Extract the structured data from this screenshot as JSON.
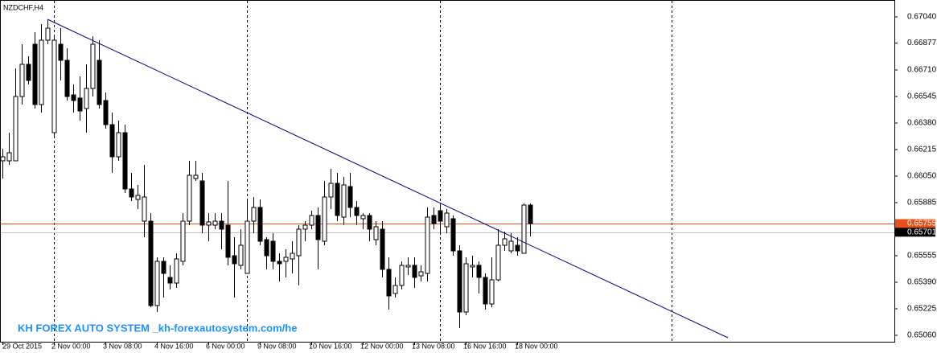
{
  "chart_data": {
    "type": "candlestick",
    "title": "NZDCHF,H4",
    "watermark": "KH FOREX AUTO SYSTEM _kh-forexautosystem.com/he",
    "categories": [
      "29 Oct 2015",
      null,
      null,
      null,
      null,
      null,
      null,
      null,
      "2 Nov 00:00",
      null,
      null,
      null,
      null,
      null,
      null,
      null,
      "3 Nov 08:00",
      null,
      null,
      null,
      null,
      null,
      null,
      null,
      "4 Nov 16:00",
      null,
      null,
      null,
      null,
      null,
      null,
      null,
      "6 Nov 00:00",
      null,
      null,
      null,
      null,
      null,
      null,
      null,
      "9 Nov 08:00",
      null,
      null,
      null,
      null,
      null,
      null,
      null,
      "10 Nov 16:00",
      null,
      null,
      null,
      null,
      null,
      null,
      null,
      "12 Nov 00:00",
      null,
      null,
      null,
      null,
      null,
      null,
      null,
      "13 Nov 08:00",
      null,
      null,
      null,
      null,
      null,
      null,
      null,
      "16 Nov 16:00",
      null,
      null,
      null,
      null,
      null,
      null,
      null,
      "18 Nov 00:00",
      null,
      null
    ],
    "open": [
      0.66145,
      0.66145,
      0.66145,
      0.66545,
      0.66745,
      0.6687,
      0.66495,
      0.66895,
      0.6632,
      0.6687,
      0.6677,
      0.66555,
      0.66535,
      0.6647,
      0.66595,
      0.6677,
      0.6652,
      0.6637,
      0.6617,
      0.6632,
      0.6597,
      0.65905,
      0.6577,
      0.6577,
      0.65245,
      0.6552,
      0.6542,
      0.65385,
      0.6552,
      0.6577,
      0.66035,
      0.6602,
      0.65745,
      0.65745,
      0.6577,
      0.65745,
      0.65555,
      0.65495,
      0.65445,
      0.6577,
      0.65855,
      0.65655,
      0.65645,
      0.6552,
      0.6552,
      0.65535,
      0.65555,
      0.6572,
      0.65745,
      0.65805,
      0.65645,
      0.6592,
      0.66005,
      0.65795,
      0.65985,
      0.65855,
      0.65785,
      0.65805,
      0.65655,
      0.6572,
      0.6547,
      0.6532,
      0.6537,
      0.65485,
      0.65495,
      0.6543,
      0.65445,
      0.65805,
      0.65835,
      0.65735,
      0.65785,
      0.65585,
      0.65205,
      0.65485,
      0.65495,
      0.6542,
      0.65255,
      0.65405,
      0.6562,
      0.65585,
      0.6562,
      0.6557,
      0.6587
    ],
    "high": [
      0.6622,
      0.6632,
      0.6672,
      0.6687,
      0.66795,
      0.66945,
      0.66995,
      0.6702,
      0.6692,
      0.6697,
      0.66845,
      0.6662,
      0.6667,
      0.66745,
      0.6692,
      0.66895,
      0.6657,
      0.66445,
      0.66395,
      0.6637,
      0.6607,
      0.65995,
      0.6612,
      0.6582,
      0.65545,
      0.65545,
      0.65495,
      0.6557,
      0.6582,
      0.66145,
      0.66145,
      0.6607,
      0.6582,
      0.6582,
      0.6582,
      0.6602,
      0.6567,
      0.6572,
      0.65895,
      0.6592,
      0.65905,
      0.6567,
      0.65695,
      0.6557,
      0.65595,
      0.65645,
      0.65745,
      0.6577,
      0.65835,
      0.65855,
      0.6602,
      0.66095,
      0.6607,
      0.66045,
      0.6607,
      0.65895,
      0.6582,
      0.6582,
      0.6577,
      0.6577,
      0.65545,
      0.6542,
      0.6552,
      0.65545,
      0.65545,
      0.65495,
      0.65855,
      0.65855,
      0.6587,
      0.65845,
      0.65805,
      0.6562,
      0.65545,
      0.65555,
      0.6552,
      0.65445,
      0.65545,
      0.6572,
      0.65705,
      0.65695,
      0.6567,
      0.6588,
      0.6588
    ],
    "low": [
      0.66035,
      0.6612,
      0.66145,
      0.66495,
      0.6662,
      0.6647,
      0.66445,
      0.6687,
      0.66295,
      0.66645,
      0.6652,
      0.66445,
      0.66395,
      0.6632,
      0.66545,
      0.6647,
      0.66345,
      0.6607,
      0.66145,
      0.65945,
      0.65895,
      0.65845,
      0.6567,
      0.65235,
      0.65205,
      0.65295,
      0.65345,
      0.65355,
      0.65495,
      0.65745,
      0.6602,
      0.65695,
      0.65645,
      0.6572,
      0.65595,
      0.65495,
      0.65295,
      0.6547,
      0.65445,
      0.65695,
      0.6562,
      0.6547,
      0.6547,
      0.65395,
      0.6542,
      0.65445,
      0.6537,
      0.65645,
      0.6572,
      0.6547,
      0.6562,
      0.65845,
      0.6577,
      0.65745,
      0.65795,
      0.65745,
      0.6572,
      0.65645,
      0.6562,
      0.6542,
      0.6522,
      0.65295,
      0.65345,
      0.65435,
      0.65355,
      0.65395,
      0.65395,
      0.6572,
      0.65695,
      0.65695,
      0.65555,
      0.65105,
      0.65185,
      0.6542,
      0.6532,
      0.6522,
      0.65235,
      0.65395,
      0.65585,
      0.6557,
      0.65555,
      0.6557,
      0.65675
    ],
    "close": [
      0.6617,
      0.66195,
      0.66545,
      0.66745,
      0.66645,
      0.66495,
      0.66895,
      0.6697,
      0.66895,
      0.6677,
      0.66545,
      0.6652,
      0.66455,
      0.66595,
      0.6687,
      0.66495,
      0.6637,
      0.6617,
      0.6632,
      0.6597,
      0.6592,
      0.6593,
      0.6592,
      0.65245,
      0.6552,
      0.65445,
      0.65385,
      0.65535,
      0.6577,
      0.66055,
      0.66055,
      0.65745,
      0.65765,
      0.6577,
      0.6572,
      0.65545,
      0.65505,
      0.6562,
      0.6577,
      0.65855,
      0.65645,
      0.65555,
      0.6552,
      0.65505,
      0.65545,
      0.6557,
      0.6572,
      0.65745,
      0.65805,
      0.65655,
      0.6592,
      0.66005,
      0.65805,
      0.65995,
      0.65855,
      0.65805,
      0.65805,
      0.6572,
      0.65735,
      0.6547,
      0.65305,
      0.6537,
      0.65495,
      0.65495,
      0.6542,
      0.65455,
      0.65795,
      0.65755,
      0.6577,
      0.6582,
      0.65585,
      0.65205,
      0.65505,
      0.65495,
      0.6542,
      0.65255,
      0.65405,
      0.6562,
      0.6566,
      0.65645,
      0.65585,
      0.6587,
      0.65755
    ],
    "up_color": "#ffffff",
    "down_color": "#000000",
    "ylim": [
      0.6502,
      0.6714
    ],
    "yticks": [
      {
        "value": 0.6704,
        "label": "0.67040"
      },
      0.66877,
      {
        "value": 0.6671,
        "label": "0.66710"
      },
      0.66545,
      {
        "value": 0.6638,
        "label": "0.66380"
      },
      0.66215,
      {
        "value": 0.6605,
        "label": "0.66050"
      },
      0.65885,
      0.65555,
      {
        "value": 0.6539,
        "label": "0.65390"
      },
      0.65225,
      {
        "value": 0.6506,
        "label": "0.65060"
      }
    ],
    "price_lines": [
      {
        "value": 0.65755,
        "color": "#e8501a",
        "label_fill": "#e8501a"
      },
      {
        "value": 0.65701,
        "color": "#c0c0c0",
        "label_fill": "#000000"
      }
    ],
    "trendline": {
      "x": [
        7,
        112.75
      ],
      "y": [
        0.67025,
        0.65045
      ],
      "color": "#000080"
    }
  }
}
